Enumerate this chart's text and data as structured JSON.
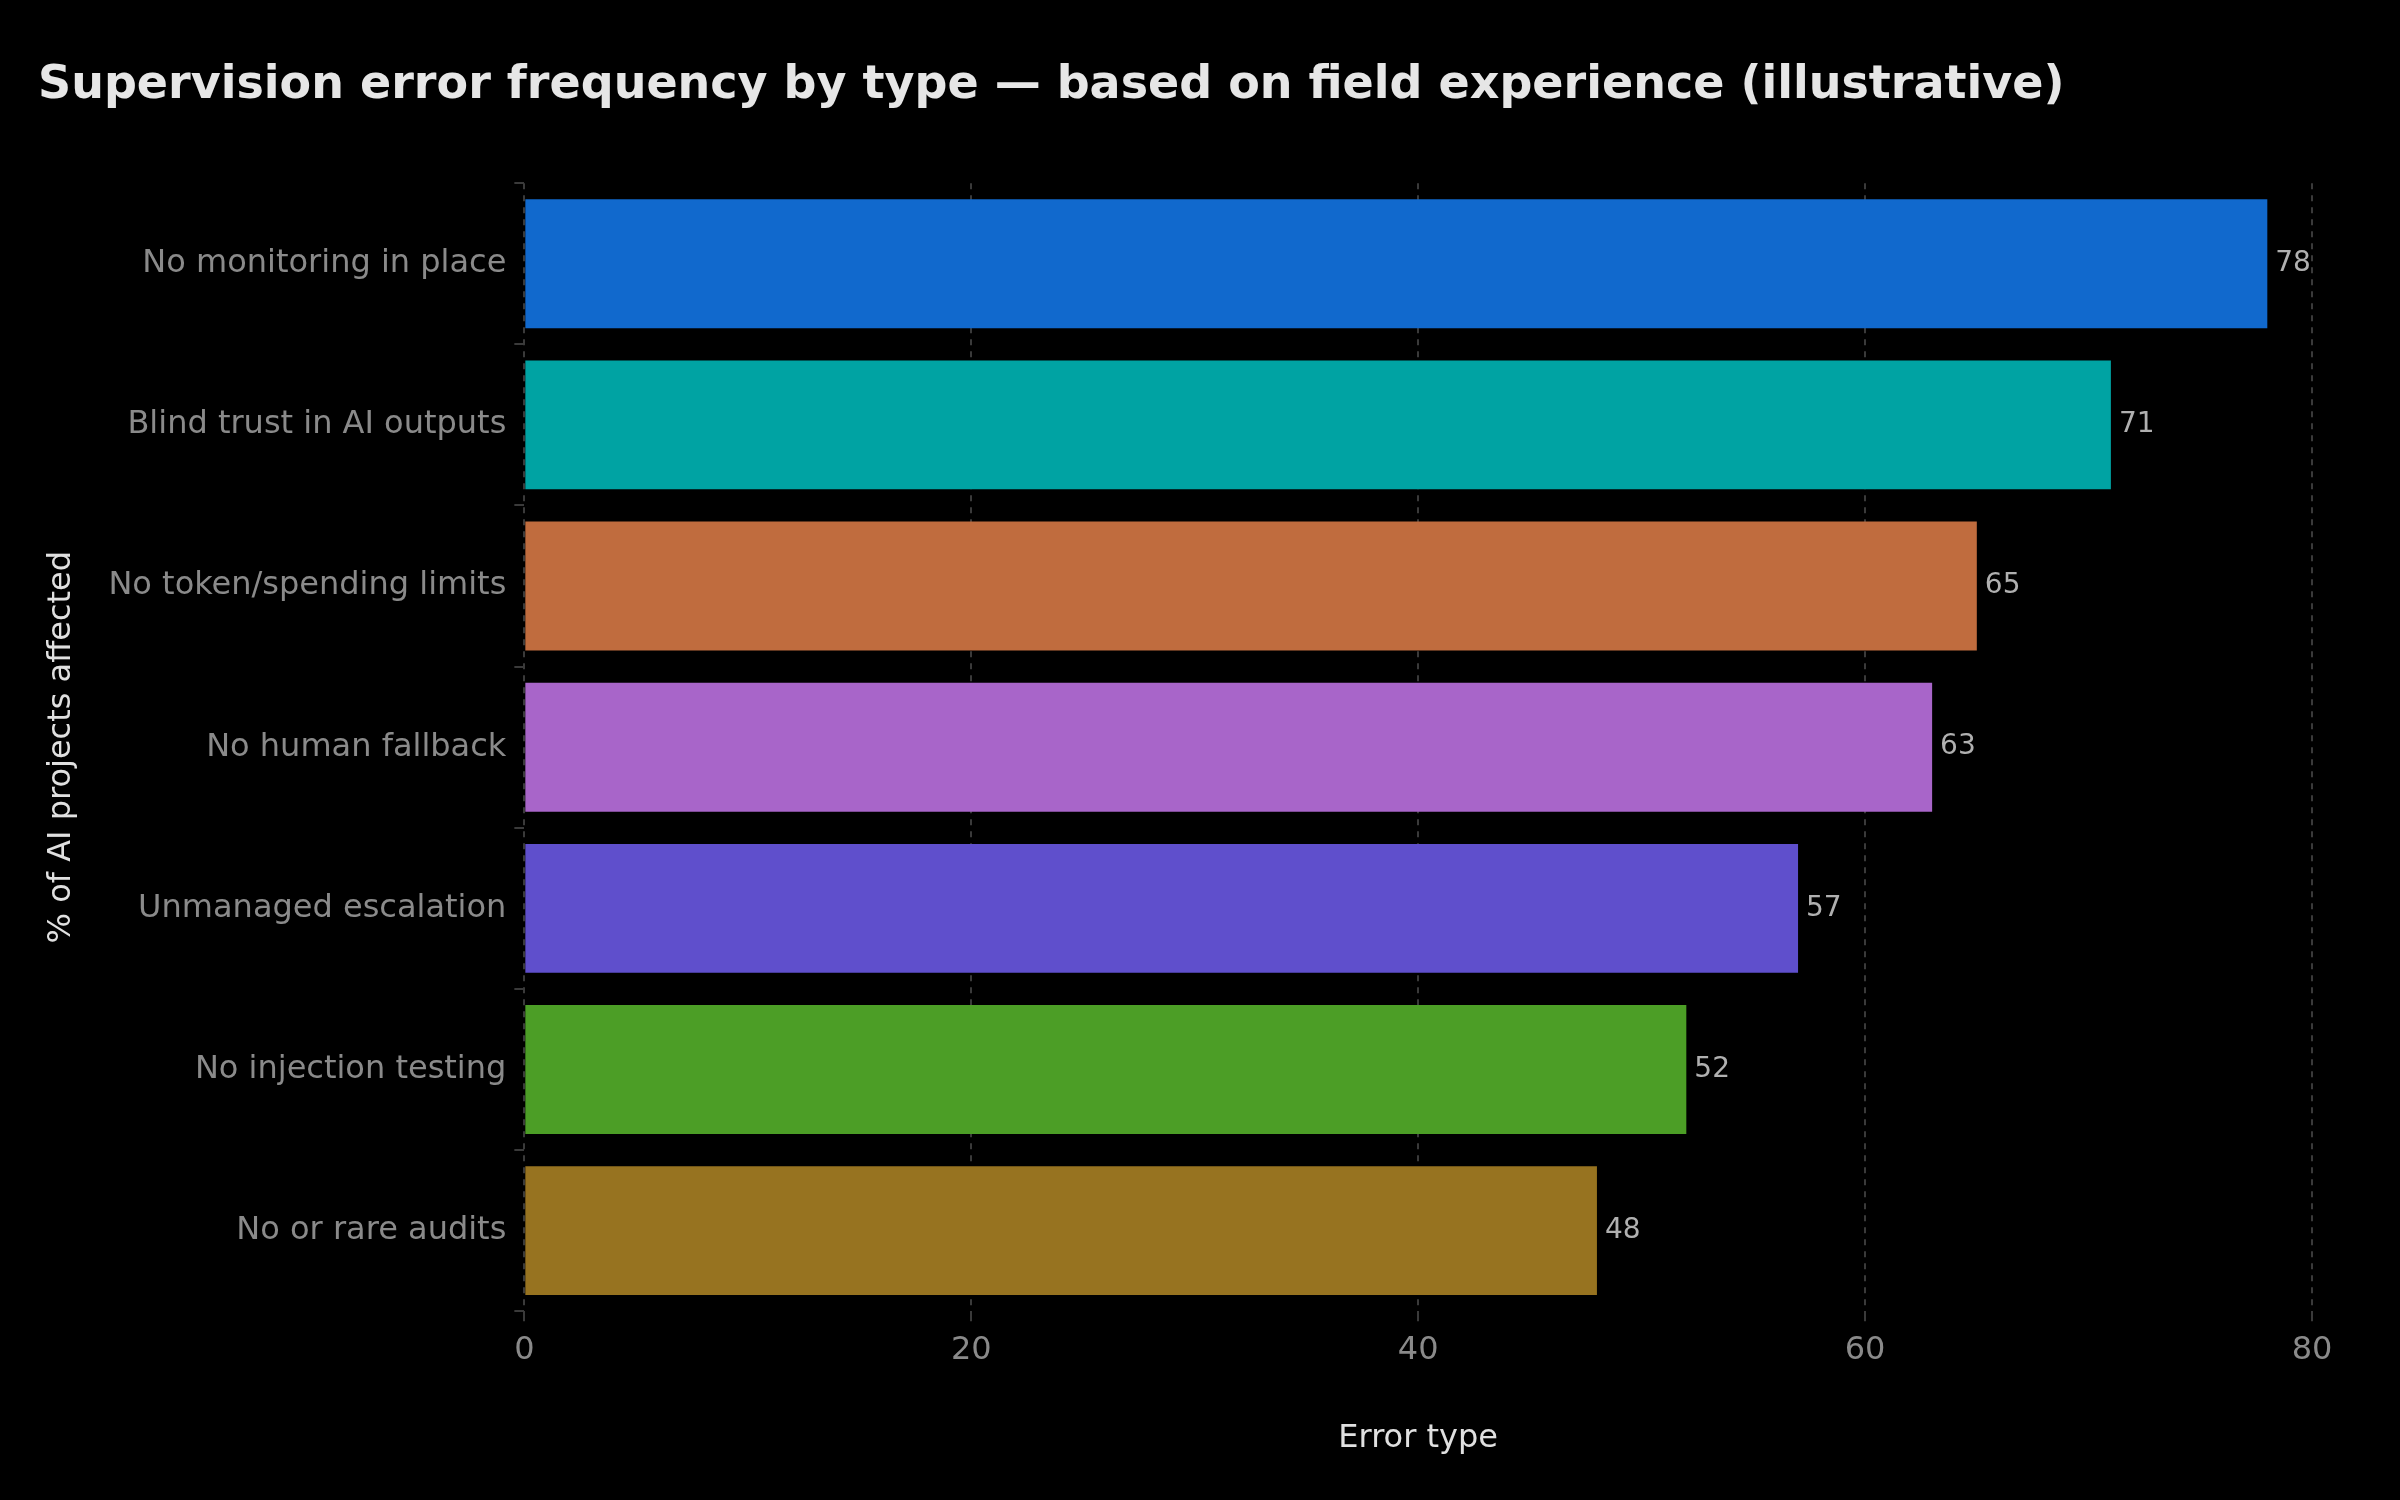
{
  "chart_data": {
    "type": "bar",
    "orientation": "horizontal",
    "title": "Supervision error frequency by type — based on field experience (illustrative)",
    "xlabel": "Error type",
    "ylabel": "% of AI projects affected",
    "categories": [
      "No monitoring in place",
      "Blind trust in AI outputs",
      "No token/spending limits",
      "No human fallback",
      "Unmanaged escalation",
      "No injection testing",
      "No or rare audits"
    ],
    "values": [
      78,
      71,
      65,
      63,
      57,
      52,
      48
    ],
    "colors": [
      "#1169cd",
      "#00a3a3",
      "#c06c3e",
      "#a865c9",
      "#5f4fcc",
      "#4c9e26",
      "#977320"
    ],
    "xlim": [
      0,
      80
    ],
    "xticks": [
      0,
      20,
      40,
      60,
      80
    ],
    "grid": "x",
    "data_labels": true
  }
}
